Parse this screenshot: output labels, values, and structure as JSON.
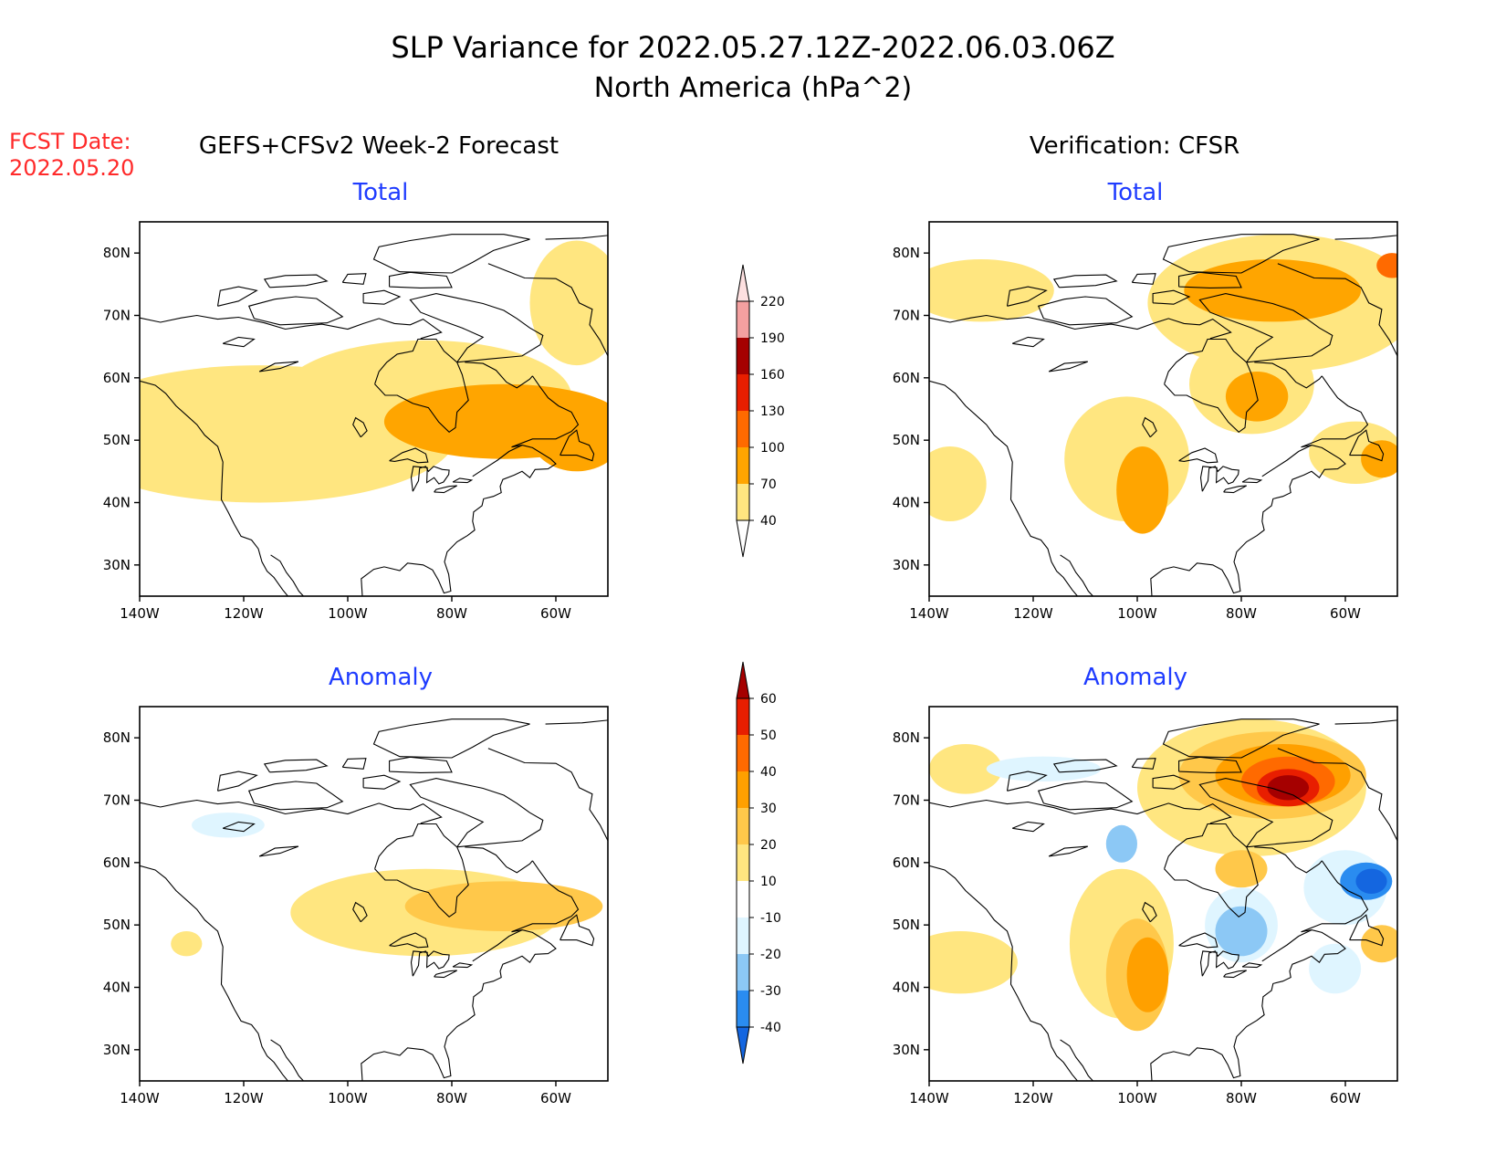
{
  "title": {
    "line1": "SLP Variance for 2022.05.27.12Z-2022.06.03.06Z",
    "line2": "North America (hPa^2)"
  },
  "fcst": {
    "label": "FCST Date:",
    "date": "2022.05.20",
    "color": "#ff2a2a"
  },
  "columns": {
    "left": "GEFS+CFSv2 Week-2 Forecast",
    "right": "Verification: CFSR"
  },
  "panel_titles": {
    "total": "Total",
    "anomaly": "Anomaly",
    "color": "#1f3cff"
  },
  "axes": {
    "lon_labels": [
      "140W",
      "120W",
      "100W",
      "80W",
      "60W"
    ],
    "lat_labels": [
      "80N",
      "70N",
      "60N",
      "50N",
      "40N",
      "30N"
    ]
  },
  "colorbars": {
    "total": {
      "labels": [
        "40",
        "70",
        "100",
        "130",
        "160",
        "190",
        "220"
      ],
      "colors": [
        "#ffe680",
        "#ffa500",
        "#ff6a00",
        "#e81e00",
        "#a50000",
        "#f4a0a0",
        "#fde0e0"
      ]
    },
    "anomaly": {
      "labels": [
        "-40",
        "-30",
        "-20",
        "-10",
        "10",
        "20",
        "30",
        "40",
        "50",
        "60"
      ],
      "colors": [
        "#1466e0",
        "#2a8cf0",
        "#8cc8f5",
        "#dff5ff",
        "#ffffff",
        "#ffe680",
        "#ffc84a",
        "#ffa000",
        "#ff6a00",
        "#e81e00",
        "#a50000"
      ]
    }
  },
  "map_fields": {
    "fc_total": [
      {
        "level": 40,
        "color": "#ffe680",
        "lon": -117,
        "lat": 51,
        "rx": 38,
        "ry": 11
      },
      {
        "level": 40,
        "color": "#ffe680",
        "lon": -85,
        "lat": 57,
        "rx": 28,
        "ry": 9
      },
      {
        "level": 40,
        "color": "#ffe680",
        "lon": -56,
        "lat": 72,
        "rx": 9,
        "ry": 10
      },
      {
        "level": 40,
        "color": "#ffe680",
        "lon": -139,
        "lat": 50,
        "rx": 6,
        "ry": 6
      },
      {
        "level": 70,
        "color": "#ffa500",
        "lon": -70,
        "lat": 53,
        "rx": 23,
        "ry": 6
      },
      {
        "level": 70,
        "color": "#ffa500",
        "lon": -56,
        "lat": 51,
        "rx": 9,
        "ry": 6
      }
    ],
    "obs_total": [
      {
        "level": 40,
        "color": "#ffe680",
        "lon": -130,
        "lat": 74,
        "rx": 14,
        "ry": 5
      },
      {
        "level": 40,
        "color": "#ffe680",
        "lon": -72,
        "lat": 72,
        "rx": 26,
        "ry": 11
      },
      {
        "level": 40,
        "color": "#ffe680",
        "lon": -78,
        "lat": 59,
        "rx": 12,
        "ry": 8
      },
      {
        "level": 40,
        "color": "#ffe680",
        "lon": -102,
        "lat": 47,
        "rx": 12,
        "ry": 10
      },
      {
        "level": 40,
        "color": "#ffe680",
        "lon": -136,
        "lat": 43,
        "rx": 7,
        "ry": 6
      },
      {
        "level": 40,
        "color": "#ffe680",
        "lon": -58,
        "lat": 48,
        "rx": 9,
        "ry": 5
      },
      {
        "level": 70,
        "color": "#ffa500",
        "lon": -74,
        "lat": 74,
        "rx": 17,
        "ry": 5
      },
      {
        "level": 70,
        "color": "#ffa500",
        "lon": -77,
        "lat": 57,
        "rx": 6,
        "ry": 4
      },
      {
        "level": 70,
        "color": "#ffa500",
        "lon": -99,
        "lat": 42,
        "rx": 5,
        "ry": 7
      },
      {
        "level": 70,
        "color": "#ffa500",
        "lon": -53,
        "lat": 47,
        "rx": 4,
        "ry": 3
      },
      {
        "level": 100,
        "color": "#ff6a00",
        "lon": -51,
        "lat": 78,
        "rx": 3,
        "ry": 2
      }
    ],
    "fc_anom": [
      {
        "level": 10,
        "color": "#ffe680",
        "lon": -85,
        "lat": 52,
        "rx": 26,
        "ry": 7
      },
      {
        "level": 10,
        "color": "#ffe680",
        "lon": -131,
        "lat": 47,
        "rx": 3,
        "ry": 2
      },
      {
        "level": 20,
        "color": "#ffc84a",
        "lon": -70,
        "lat": 53,
        "rx": 19,
        "ry": 4
      },
      {
        "level": -10,
        "color": "#dff5ff",
        "lon": -123,
        "lat": 66,
        "rx": 7,
        "ry": 2
      }
    ],
    "obs_anom": [
      {
        "level": 10,
        "color": "#ffe680",
        "lon": -78,
        "lat": 72,
        "rx": 22,
        "ry": 11
      },
      {
        "level": 10,
        "color": "#ffe680",
        "lon": -134,
        "lat": 44,
        "rx": 11,
        "ry": 5
      },
      {
        "level": 10,
        "color": "#ffe680",
        "lon": -133,
        "lat": 75,
        "rx": 7,
        "ry": 4
      },
      {
        "level": 10,
        "color": "#ffe680",
        "lon": -103,
        "lat": 47,
        "rx": 10,
        "ry": 12
      },
      {
        "level": 20,
        "color": "#ffc84a",
        "lon": -100,
        "lat": 42,
        "rx": 6,
        "ry": 9
      },
      {
        "level": 20,
        "color": "#ffc84a",
        "lon": -74,
        "lat": 74,
        "rx": 18,
        "ry": 7
      },
      {
        "level": 20,
        "color": "#ffc84a",
        "lon": -80,
        "lat": 59,
        "rx": 5,
        "ry": 3
      },
      {
        "level": 20,
        "color": "#ffc84a",
        "lon": -53,
        "lat": 47,
        "rx": 4,
        "ry": 3
      },
      {
        "level": 30,
        "color": "#ffa000",
        "lon": -98,
        "lat": 42,
        "rx": 4,
        "ry": 6
      },
      {
        "level": 30,
        "color": "#ffa000",
        "lon": -72,
        "lat": 74,
        "rx": 13,
        "ry": 5
      },
      {
        "level": 40,
        "color": "#ff6a00",
        "lon": -71,
        "lat": 73,
        "rx": 9,
        "ry": 4
      },
      {
        "level": 50,
        "color": "#e81e00",
        "lon": -71,
        "lat": 72,
        "rx": 6,
        "ry": 3
      },
      {
        "level": 60,
        "color": "#a50000",
        "lon": -71,
        "lat": 72,
        "rx": 4,
        "ry": 2
      },
      {
        "level": -10,
        "color": "#dff5ff",
        "lon": -80,
        "lat": 50,
        "rx": 7,
        "ry": 6
      },
      {
        "level": -10,
        "color": "#dff5ff",
        "lon": -60,
        "lat": 56,
        "rx": 8,
        "ry": 6
      },
      {
        "level": -10,
        "color": "#dff5ff",
        "lon": -62,
        "lat": 43,
        "rx": 5,
        "ry": 4
      },
      {
        "level": -10,
        "color": "#dff5ff",
        "lon": -118,
        "lat": 75,
        "rx": 11,
        "ry": 2
      },
      {
        "level": -20,
        "color": "#8cc8f5",
        "lon": -103,
        "lat": 63,
        "rx": 3,
        "ry": 3
      },
      {
        "level": -20,
        "color": "#8cc8f5",
        "lon": -80,
        "lat": 49,
        "rx": 5,
        "ry": 4
      },
      {
        "level": -30,
        "color": "#2a8cf0",
        "lon": -56,
        "lat": 57,
        "rx": 5,
        "ry": 3
      },
      {
        "level": -40,
        "color": "#1466e0",
        "lon": -55,
        "lat": 57,
        "rx": 3,
        "ry": 2
      }
    ]
  }
}
